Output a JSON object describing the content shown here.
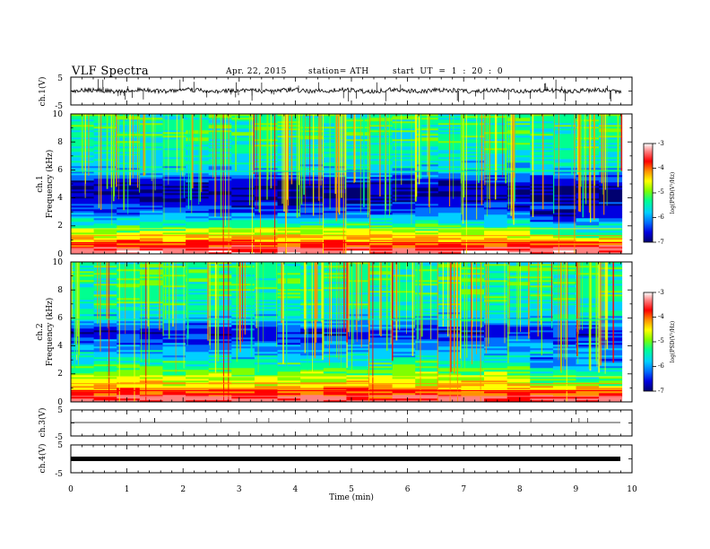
{
  "header": {
    "title": "VLF  Spectra",
    "date": "Apr. 22, 2015",
    "station": "station= ATH",
    "start_ut": "start  UT =   1 : 20 : 0"
  },
  "xaxis": {
    "label": "Time  (min)",
    "range": [
      0,
      10
    ],
    "ticks": [
      "0",
      "1",
      "2",
      "3",
      "4",
      "5",
      "6",
      "7",
      "8",
      "9",
      "10"
    ],
    "data_end_min": 9.82
  },
  "panels": {
    "ch1_wave": {
      "ylabel": "ch.1(V)",
      "ticks": [
        "5",
        "-5"
      ],
      "range": [
        -5,
        5
      ]
    },
    "ch1_spec": {
      "ylabel_ch": "ch.1",
      "ylabel_freq": "Frequency  (kHz)",
      "ticks": [
        "10",
        "8",
        "6",
        "4",
        "2",
        "0"
      ],
      "range_khz": [
        0,
        10
      ]
    },
    "ch2_spec": {
      "ylabel_ch": "ch.2",
      "ylabel_freq": "Frequency  (kHz)",
      "ticks": [
        "10",
        "8",
        "6",
        "4",
        "2",
        "0"
      ],
      "range_khz": [
        0,
        10
      ]
    },
    "ch3_wave": {
      "ylabel": "ch.3(V)",
      "ticks": [
        "5",
        "-5"
      ],
      "range": [
        -5,
        5
      ]
    },
    "ch4_wave": {
      "ylabel": "ch.4(V)",
      "ticks": [
        "5",
        "-5"
      ],
      "range": [
        -5,
        5
      ]
    }
  },
  "colorbar": {
    "label": "log(PSD(V²/Hz)",
    "ticks": [
      "-3",
      "-4",
      "-5",
      "-6",
      "-7"
    ],
    "range": [
      -7,
      -3
    ],
    "colors": [
      "#000070",
      "#0000e0",
      "#0070ff",
      "#00d0ff",
      "#00ff90",
      "#80ff00",
      "#ffff00",
      "#ff9000",
      "#ff0000",
      "#ff8080",
      "#ffffff"
    ]
  },
  "chart_data": {
    "type": "heatmap",
    "title": "VLF  Spectra",
    "xlabel": "Time  (min)",
    "xlim": [
      0,
      10
    ],
    "ylim_khz": [
      0,
      10
    ],
    "zlim": [
      -7,
      -3
    ],
    "channels": [
      "ch.1",
      "ch.2",
      "ch.3",
      "ch.4"
    ],
    "ch1_spectrum_bands_khz": [
      {
        "f": 0.2,
        "logpsd": -3.4
      },
      {
        "f": 0.6,
        "logpsd": -3.9
      },
      {
        "f": 1.0,
        "logpsd": -4.3
      },
      {
        "f": 1.5,
        "logpsd": -4.8
      },
      {
        "f": 2.0,
        "logpsd": -5.3
      },
      {
        "f": 3.0,
        "logpsd": -6.3
      },
      {
        "f": 4.0,
        "logpsd": -6.8
      },
      {
        "f": 5.0,
        "logpsd": -6.8
      },
      {
        "f": 5.9,
        "logpsd": -5.8
      },
      {
        "f": 7.0,
        "logpsd": -5.6
      },
      {
        "f": 8.5,
        "logpsd": -5.4
      },
      {
        "f": 9.5,
        "logpsd": -5.4
      }
    ],
    "ch2_spectrum_bands_khz": [
      {
        "f": 0.2,
        "logpsd": -3.6
      },
      {
        "f": 0.8,
        "logpsd": -4.1
      },
      {
        "f": 1.2,
        "logpsd": -4.5
      },
      {
        "f": 2.0,
        "logpsd": -5.0
      },
      {
        "f": 3.0,
        "logpsd": -5.6
      },
      {
        "f": 4.0,
        "logpsd": -6.1
      },
      {
        "f": 5.0,
        "logpsd": -6.6
      },
      {
        "f": 5.9,
        "logpsd": -5.8
      },
      {
        "f": 7.0,
        "logpsd": -5.5
      },
      {
        "f": 8.5,
        "logpsd": -5.4
      },
      {
        "f": 9.5,
        "logpsd": -5.4
      }
    ],
    "low_band_change_min": 7.9
  }
}
